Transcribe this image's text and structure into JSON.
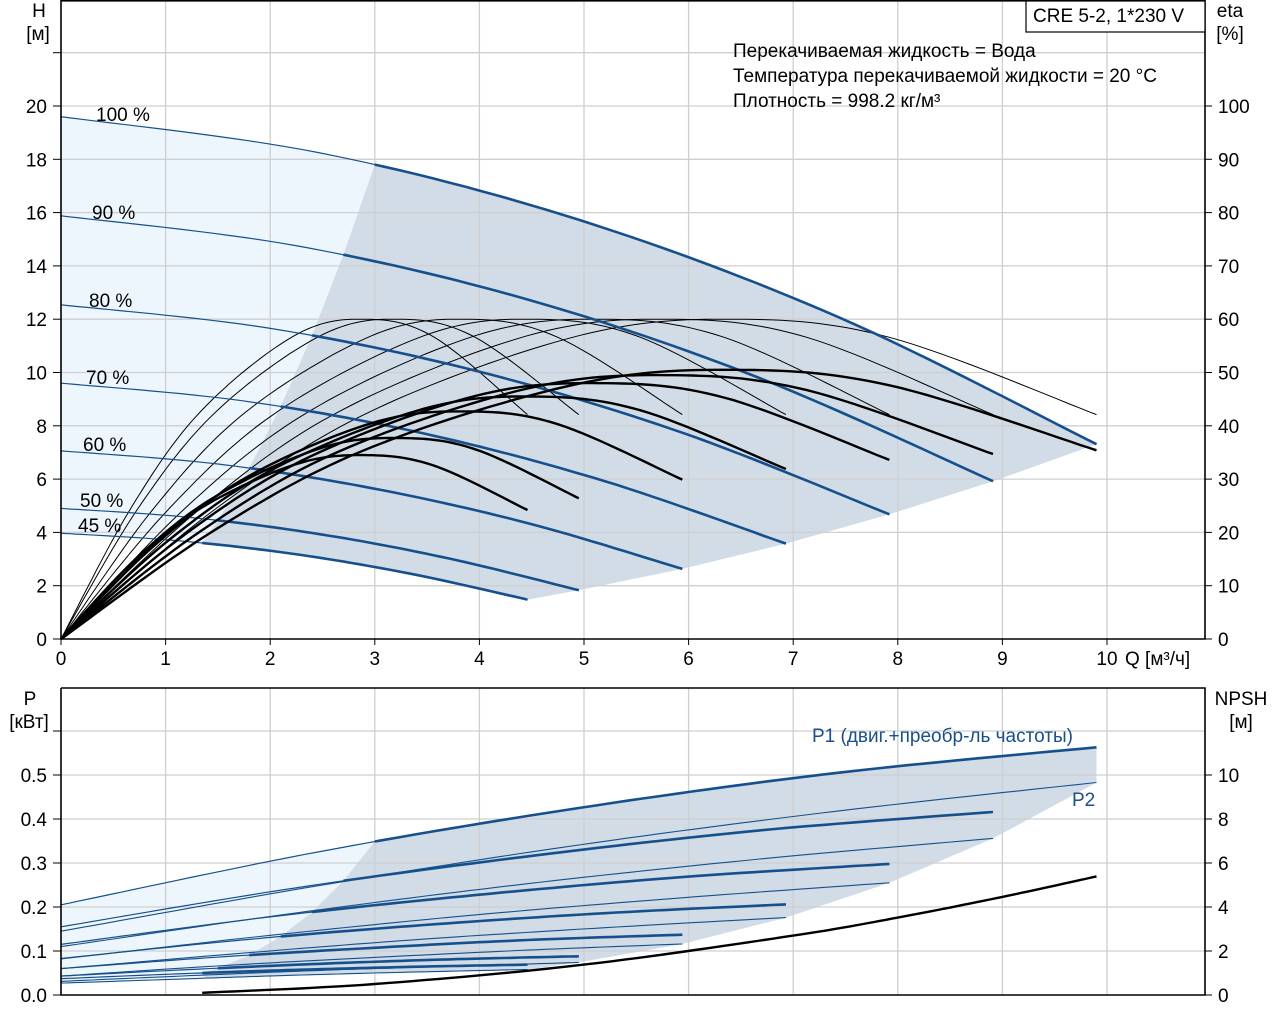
{
  "chart_data": [
    {
      "type": "line",
      "title": "CRE 5-2, 1*230 V",
      "xlabel": "Q [м³/ч]",
      "ylabel_top": "H",
      "ylabel_unit": "[м]",
      "y2label_top": "eta",
      "y2label_unit": "[%]",
      "info": [
        "Перекачиваемая жидкость = Вода",
        "Температура перекачиваемой жидкости = 20 °C",
        "Плотность = 998.2 кг/м³"
      ],
      "xlim": [
        0,
        10.94
      ],
      "ylim": [
        0,
        24
      ],
      "y2lim": [
        0,
        120
      ],
      "grid": true,
      "x_ticks": [
        "0",
        "1",
        "2",
        "3",
        "4",
        "5",
        "6",
        "7",
        "8",
        "9",
        "10"
      ],
      "y_ticks": [
        "0",
        "2",
        "4",
        "6",
        "8",
        "10",
        "12",
        "14",
        "16",
        "18",
        "20"
      ],
      "y2_ticks": [
        "0",
        "10",
        "20",
        "30",
        "40",
        "50",
        "60",
        "70",
        "80",
        "90",
        "100"
      ],
      "head_series": [
        {
          "name": "100 %",
          "thick_from_q": 3.0,
          "x": [
            0,
            2.475,
            4.95,
            7.425,
            9.9
          ],
          "y": [
            19.6,
            18.24,
            15.73,
            12.09,
            7.31
          ]
        },
        {
          "name": "90 %",
          "thick_from_q": 2.7,
          "x": [
            0,
            2.23,
            4.46,
            6.68,
            8.91
          ],
          "y": [
            15.88,
            14.77,
            12.74,
            9.79,
            5.92
          ]
        },
        {
          "name": "80 %",
          "thick_from_q": 2.4,
          "x": [
            0,
            1.98,
            3.96,
            5.94,
            7.92
          ],
          "y": [
            12.54,
            11.67,
            10.07,
            7.74,
            4.68
          ]
        },
        {
          "name": "70 %",
          "thick_from_q": 2.1,
          "x": [
            0,
            1.73,
            3.47,
            5.2,
            6.93
          ],
          "y": [
            9.6,
            8.94,
            7.71,
            5.92,
            3.58
          ]
        },
        {
          "name": "60 %",
          "thick_from_q": 1.8,
          "x": [
            0,
            1.49,
            2.97,
            4.46,
            5.94
          ],
          "y": [
            7.06,
            6.57,
            5.66,
            4.35,
            2.63
          ]
        },
        {
          "name": "50 %",
          "thick_from_q": 1.5,
          "x": [
            0,
            1.24,
            2.48,
            3.71,
            4.95
          ],
          "y": [
            4.9,
            4.56,
            3.93,
            3.02,
            1.83
          ]
        },
        {
          "name": "45 %",
          "thick_from_q": 1.35,
          "x": [
            0,
            1.11,
            2.23,
            3.34,
            4.46
          ],
          "y": [
            3.97,
            3.69,
            3.19,
            2.45,
            1.48
          ]
        }
      ],
      "eta_total_series": [
        {
          "speed": "100 %",
          "x": [
            0,
            1.49,
            2.97,
            4.95,
            6.44,
            7.92,
            9.9
          ],
          "y": [
            0,
            20.7,
            36.0,
            47.9,
            50.5,
            47.6,
            35.4
          ]
        },
        {
          "speed": "90 %",
          "x": [
            0,
            1.34,
            2.67,
            4.46,
            5.79,
            7.13,
            8.91
          ],
          "y": [
            0,
            20.3,
            35.3,
            47.0,
            49.5,
            46.7,
            34.7
          ]
        },
        {
          "speed": "80 %",
          "x": [
            0,
            1.19,
            2.38,
            3.96,
            5.15,
            6.34,
            7.92
          ],
          "y": [
            0,
            19.7,
            34.2,
            45.6,
            48.0,
            45.3,
            33.6
          ]
        },
        {
          "speed": "70 %",
          "x": [
            0,
            1.04,
            2.08,
            3.47,
            4.5,
            5.54,
            6.93
          ],
          "y": [
            0,
            18.7,
            32.4,
            43.2,
            45.5,
            42.9,
            31.9
          ]
        },
        {
          "speed": "60 %",
          "x": [
            0,
            0.89,
            1.78,
            2.97,
            3.86,
            4.75,
            5.94
          ],
          "y": [
            0,
            17.5,
            30.4,
            40.5,
            42.7,
            40.3,
            29.9
          ]
        },
        {
          "speed": "50 %",
          "x": [
            0,
            0.74,
            1.49,
            2.48,
            3.22,
            3.96,
            4.95
          ],
          "y": [
            0,
            15.5,
            26.9,
            35.8,
            37.7,
            35.6,
            26.4
          ]
        },
        {
          "speed": "45 %",
          "x": [
            0,
            0.67,
            1.34,
            2.23,
            2.9,
            3.57,
            4.46
          ],
          "y": [
            0,
            14.1,
            24.6,
            32.7,
            34.5,
            32.5,
            24.2
          ]
        }
      ],
      "eta_pump_series": [
        {
          "speed": "100 %",
          "x": [
            0,
            1.49,
            2.97,
            4.95,
            6.44,
            7.92,
            9.9
          ],
          "y": [
            0,
            24.6,
            42.8,
            56.9,
            60,
            56.6,
            42.1
          ]
        },
        {
          "speed": "90 %",
          "x": [
            0,
            1.34,
            2.67,
            4.46,
            5.79,
            7.13,
            8.91
          ],
          "y": [
            0,
            24.6,
            42.8,
            56.9,
            60,
            56.6,
            42.1
          ]
        },
        {
          "speed": "80 %",
          "x": [
            0,
            1.19,
            2.38,
            3.96,
            5.15,
            6.34,
            7.92
          ],
          "y": [
            0,
            24.6,
            42.8,
            56.9,
            60,
            56.6,
            42.1
          ]
        },
        {
          "speed": "70 %",
          "x": [
            0,
            1.04,
            2.08,
            3.47,
            4.5,
            5.54,
            6.93
          ],
          "y": [
            0,
            24.6,
            42.8,
            56.9,
            60,
            56.6,
            42.1
          ]
        },
        {
          "speed": "60 %",
          "x": [
            0,
            0.89,
            1.78,
            2.97,
            3.86,
            4.75,
            5.94
          ],
          "y": [
            0,
            24.6,
            42.8,
            56.9,
            60,
            56.6,
            42.1
          ]
        },
        {
          "speed": "50 %",
          "x": [
            0,
            0.74,
            1.49,
            2.48,
            3.22,
            3.96,
            4.95
          ],
          "y": [
            0,
            24.6,
            42.8,
            56.9,
            60,
            56.6,
            42.1
          ]
        },
        {
          "speed": "45 %",
          "x": [
            0,
            0.67,
            1.34,
            2.23,
            2.9,
            3.57,
            4.46
          ],
          "y": [
            0,
            24.6,
            42.8,
            56.9,
            60,
            56.6,
            42.1
          ]
        }
      ]
    },
    {
      "type": "line",
      "ylabel_top": "P",
      "ylabel_unit": "[кВт]",
      "y2label_top": "NPSH",
      "y2label_unit": "[м]",
      "xlim": [
        0,
        10.94
      ],
      "ylim": [
        0,
        0.698
      ],
      "y2lim": [
        0,
        13.95
      ],
      "grid": true,
      "y_ticks": [
        "0.0",
        "0.1",
        "0.2",
        "0.3",
        "0.4",
        "0.5"
      ],
      "y2_ticks": [
        "0",
        "2",
        "4",
        "6",
        "8",
        "10"
      ],
      "p1_label": "P1 (двиг.+преобр-ль частоты)",
      "p2_label": "P2",
      "p1_series": [
        {
          "speed": "100 %",
          "thick_from_q": 3.0,
          "x": [
            0,
            2.475,
            4.95,
            7.425,
            9.9
          ],
          "y": [
            0.205,
            0.326,
            0.425,
            0.505,
            0.563
          ]
        },
        {
          "speed": "90 %",
          "thick_from_q": 2.7,
          "x": [
            0,
            2.23,
            4.46,
            6.68,
            8.91
          ],
          "y": [
            0.155,
            0.243,
            0.315,
            0.374,
            0.416
          ]
        },
        {
          "speed": "80 %",
          "thick_from_q": 2.4,
          "x": [
            0,
            1.98,
            3.96,
            5.94,
            7.92
          ],
          "y": [
            0.115,
            0.177,
            0.227,
            0.268,
            0.298
          ]
        },
        {
          "speed": "70 %",
          "thick_from_q": 2.1,
          "x": [
            0,
            1.73,
            3.47,
            5.2,
            6.93
          ],
          "y": [
            0.083,
            0.125,
            0.159,
            0.186,
            0.206
          ]
        },
        {
          "speed": "60 %",
          "thick_from_q": 1.8,
          "x": [
            0,
            1.49,
            2.97,
            4.46,
            5.94
          ],
          "y": [
            0.06,
            0.086,
            0.107,
            0.125,
            0.137
          ]
        },
        {
          "speed": "50 %",
          "thick_from_q": 1.5,
          "x": [
            0,
            1.24,
            2.48,
            3.71,
            4.95
          ],
          "y": [
            0.043,
            0.058,
            0.071,
            0.081,
            0.088
          ]
        },
        {
          "speed": "45 %",
          "thick_from_q": 1.35,
          "x": [
            0,
            1.11,
            2.23,
            3.34,
            4.46
          ],
          "y": [
            0.037,
            0.048,
            0.057,
            0.064,
            0.069
          ]
        }
      ],
      "p2_series": [
        {
          "speed": "100 %",
          "x": [
            0,
            2.475,
            4.95,
            7.425,
            9.9
          ],
          "y": [
            0.145,
            0.249,
            0.341,
            0.418,
            0.483
          ]
        },
        {
          "speed": "90 %",
          "x": [
            0,
            2.23,
            4.46,
            6.68,
            8.91
          ],
          "y": [
            0.11,
            0.186,
            0.253,
            0.309,
            0.356
          ]
        },
        {
          "speed": "80 %",
          "x": [
            0,
            1.98,
            3.96,
            5.94,
            7.92
          ],
          "y": [
            0.082,
            0.135,
            0.182,
            0.221,
            0.255
          ]
        },
        {
          "speed": "70 %",
          "x": [
            0,
            1.73,
            3.47,
            5.2,
            6.93
          ],
          "y": [
            0.06,
            0.095,
            0.127,
            0.153,
            0.176
          ]
        },
        {
          "speed": "60 %",
          "x": [
            0,
            1.49,
            2.97,
            4.46,
            5.94
          ],
          "y": [
            0.043,
            0.066,
            0.085,
            0.102,
            0.116
          ]
        },
        {
          "speed": "50 %",
          "x": [
            0,
            1.24,
            2.48,
            3.71,
            4.95
          ],
          "y": [
            0.031,
            0.044,
            0.056,
            0.065,
            0.074
          ]
        },
        {
          "speed": "45 %",
          "x": [
            0,
            1.11,
            2.23,
            3.34,
            4.46
          ],
          "y": [
            0.027,
            0.036,
            0.045,
            0.052,
            0.058
          ]
        }
      ],
      "npsh_series": {
        "name": "NPSH",
        "x": [
          1.35,
          3,
          5,
          7,
          8,
          9,
          9.9
        ],
        "y": [
          0.1,
          0.5,
          1.38,
          2.7,
          3.52,
          4.46,
          5.39
        ]
      }
    }
  ],
  "colors": {
    "curve_blue": "#16508c",
    "fill_light": "#eef6fd",
    "fill_dark": "#d1dce7",
    "grid": "#cfcfcf"
  }
}
